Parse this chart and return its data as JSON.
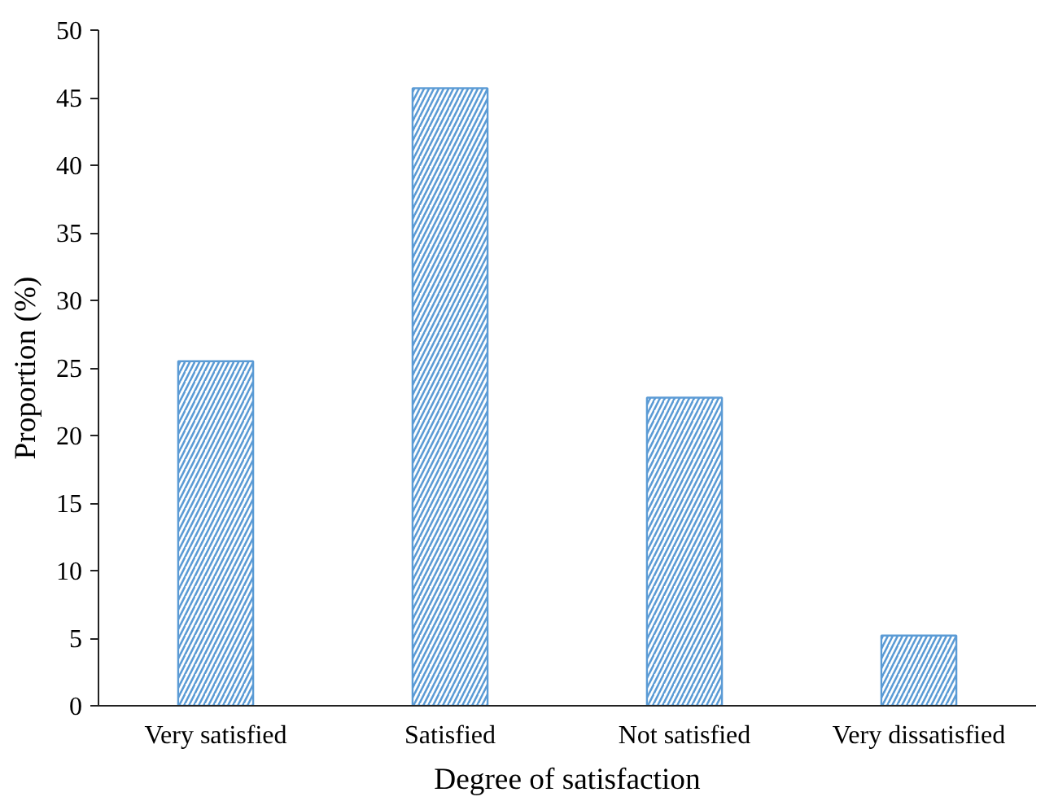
{
  "chart_data": {
    "type": "bar",
    "xlabel": "Degree of satisfaction",
    "ylabel": "Proportion (%)",
    "categories": [
      "Very satisfied",
      "Satisfied",
      "Not satisfied",
      "Very dissatisfied"
    ],
    "values": [
      25.5,
      45.7,
      22.8,
      5.2
    ],
    "color": "#5b9bd5",
    "ylim": [
      0,
      50
    ],
    "yticks": [
      0,
      5,
      10,
      15,
      20,
      25,
      30,
      35,
      40,
      45,
      50
    ],
    "grid": false
  }
}
